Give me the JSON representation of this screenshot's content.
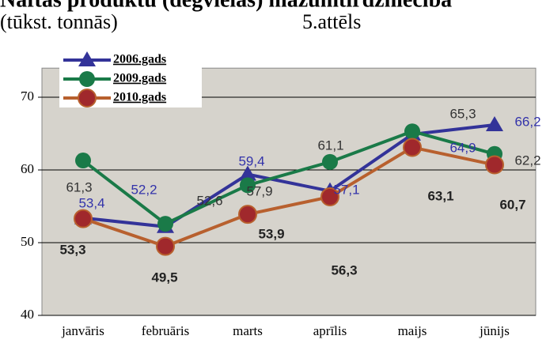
{
  "chart_data": {
    "type": "line",
    "title": "Naftas produktu (degvielas) mazumtirdzniecība",
    "subtitle": "(tūkst. tonnās)",
    "figure_label": "5.attēls",
    "categories": [
      "janvāris",
      "februāris",
      "marts",
      "aprīlis",
      "maijs",
      "jūnijs"
    ],
    "series": [
      {
        "name": "2006.gads",
        "color": "#333399",
        "marker": "triangle",
        "values": [
          53.4,
          52.2,
          59.4,
          57.1,
          64.9,
          66.2
        ],
        "value_labels": [
          "53,4",
          "52,2",
          "59,4",
          "57,1",
          "64,9",
          "66,2"
        ]
      },
      {
        "name": "2009.gads",
        "color": "#1a7a48",
        "marker": "circle",
        "values": [
          61.3,
          52.6,
          57.9,
          61.1,
          65.3,
          62.2
        ],
        "value_labels": [
          "61,3",
          "52,6",
          "57,9",
          "61,1",
          "65,3",
          "62,2"
        ]
      },
      {
        "name": "2010.gads",
        "color": "#b8602e",
        "marker": "circle-red",
        "values": [
          53.3,
          49.5,
          53.9,
          56.3,
          63.1,
          60.7
        ],
        "value_labels": [
          "53,3",
          "49,5",
          "53,9",
          "56,3",
          "63,1",
          "60,7"
        ]
      }
    ],
    "ylim": [
      40,
      74
    ],
    "yticks": [
      40,
      50,
      60,
      70
    ],
    "grid": true,
    "legend": "top-left"
  }
}
